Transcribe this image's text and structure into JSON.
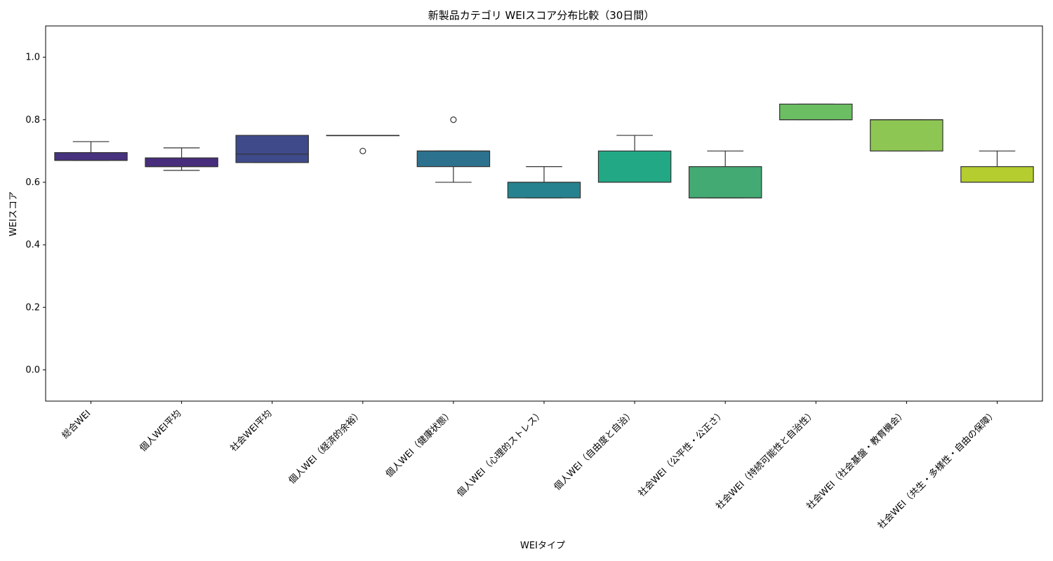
{
  "chart_data": {
    "type": "box",
    "title": "新製品カテゴリ WEIスコア分布比較（30日間）",
    "xlabel": "WEIタイプ",
    "ylabel": "WEIスコア",
    "ylim": [
      -0.1,
      1.1
    ],
    "yticks": [
      0.0,
      0.2,
      0.4,
      0.6,
      0.8,
      1.0
    ],
    "ytick_labels": [
      "0.0",
      "0.2",
      "0.4",
      "0.6",
      "0.8",
      "1.0"
    ],
    "grid": false,
    "categories": [
      "総合WEI",
      "個人WEI平均",
      "社会WEI平均",
      "個人WEI（経済的余裕）",
      "個人WEI（健康状態）",
      "個人WEI（心理的ストレス）",
      "個人WEI（自由度と自治）",
      "社会WEI（公平性・公正さ）",
      "社会WEI（持続可能性と自治性）",
      "社会WEI（社会基盤・教育機会）",
      "社会WEI（共生・多様性・自由の保障）"
    ],
    "boxes": [
      {
        "whisker_low": 0.67,
        "q1": 0.67,
        "median": 0.67,
        "q3": 0.695,
        "whisker_high": 0.73,
        "outliers": [],
        "color": "#46327e"
      },
      {
        "whisker_low": 0.638,
        "q1": 0.65,
        "median": 0.65,
        "q3": 0.678,
        "whisker_high": 0.71,
        "outliers": [],
        "color": "#472d7b"
      },
      {
        "whisker_low": 0.663,
        "q1": 0.663,
        "median": 0.69,
        "q3": 0.75,
        "whisker_high": 0.75,
        "outliers": [],
        "color": "#3e4a89"
      },
      {
        "whisker_low": 0.75,
        "q1": 0.75,
        "median": 0.75,
        "q3": 0.75,
        "whisker_high": 0.75,
        "outliers": [
          0.7
        ],
        "color": "#31688e"
      },
      {
        "whisker_low": 0.6,
        "q1": 0.65,
        "median": 0.7,
        "q3": 0.7,
        "whisker_high": 0.7,
        "outliers": [
          0.8
        ],
        "color": "#2c728e"
      },
      {
        "whisker_low": 0.55,
        "q1": 0.55,
        "median": 0.6,
        "q3": 0.6,
        "whisker_high": 0.65,
        "outliers": [],
        "color": "#26828e"
      },
      {
        "whisker_low": 0.6,
        "q1": 0.6,
        "median": 0.6,
        "q3": 0.7,
        "whisker_high": 0.75,
        "outliers": [],
        "color": "#22a884"
      },
      {
        "whisker_low": 0.55,
        "q1": 0.55,
        "median": 0.55,
        "q3": 0.65,
        "whisker_high": 0.7,
        "outliers": [],
        "color": "#44aa74"
      },
      {
        "whisker_low": 0.8,
        "q1": 0.8,
        "median": 0.8,
        "q3": 0.85,
        "whisker_high": 0.85,
        "outliers": [],
        "color": "#6cbe63"
      },
      {
        "whisker_low": 0.7,
        "q1": 0.7,
        "median": 0.8,
        "q3": 0.8,
        "whisker_high": 0.8,
        "outliers": [],
        "color": "#8ec653"
      },
      {
        "whisker_low": 0.6,
        "q1": 0.6,
        "median": 0.6,
        "q3": 0.65,
        "whisker_high": 0.7,
        "outliers": [],
        "color": "#b5cd2e"
      }
    ]
  }
}
